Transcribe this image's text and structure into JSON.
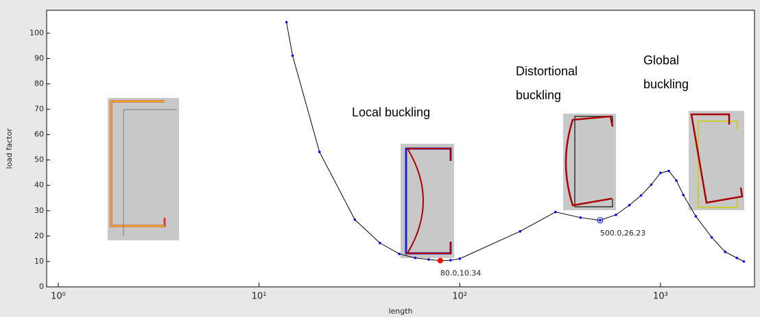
{
  "chart_data": {
    "type": "line",
    "xlabel": "length",
    "ylabel": "load factor",
    "xscale": "log",
    "xlim": [
      0.875,
      2940
    ],
    "ylim": [
      0,
      109
    ],
    "xticks": [
      {
        "value": 1,
        "label": "10⁰"
      },
      {
        "value": 10,
        "label": "10¹"
      },
      {
        "value": 100,
        "label": "10²"
      },
      {
        "value": 1000,
        "label": "10³"
      }
    ],
    "yticks": [
      0,
      10,
      20,
      30,
      40,
      50,
      60,
      70,
      80,
      90,
      100
    ],
    "series": [
      {
        "color": "#0000ff",
        "x": [
          13.7,
          14.7,
          20,
          30,
          40,
          50,
          60,
          70,
          80,
          90,
          100,
          200,
          300,
          400,
          500,
          600,
          700,
          800,
          900,
          1000,
          1100,
          1200,
          1300,
          1500,
          1800,
          2100,
          2400,
          2600
        ],
        "values": [
          104.3,
          91.1,
          53.2,
          26.5,
          17.3,
          13.0,
          11.4,
          10.8,
          10.34,
          10.5,
          11.1,
          21.9,
          29.5,
          27.3,
          26.23,
          28.4,
          32.2,
          36.0,
          40.3,
          44.9,
          45.7,
          41.9,
          36.2,
          27.8,
          19.5,
          13.8,
          11.4,
          10.0
        ]
      }
    ],
    "annotations": [
      {
        "x": 80,
        "y": 10.34,
        "label": "80.0,10.34",
        "color": "#ff0000"
      },
      {
        "x": 500,
        "y": 26.23,
        "label": "500.0,26.23",
        "color": "#0000ff"
      }
    ],
    "notes": [
      "Local buckling",
      "Distortional",
      "buckling",
      "Global",
      "buckling"
    ]
  }
}
